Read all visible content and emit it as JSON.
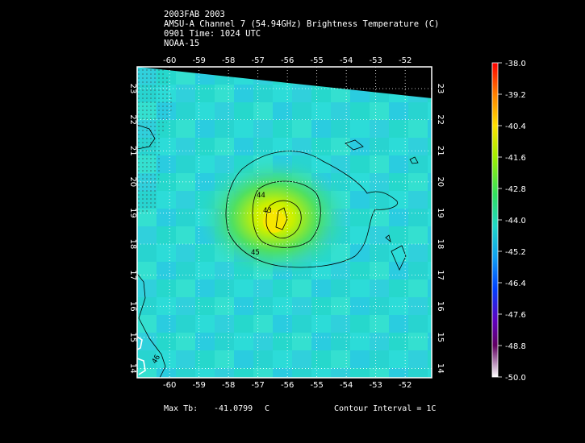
{
  "header": {
    "line1": "2003FAB 2003",
    "line2": "AMSU-A Channel 7 (54.94GHz) Brightness Temperature (C)",
    "line3": "0901 Time: 1024 UTC",
    "line4": "NOAA-15"
  },
  "map": {
    "lon_ticks": [
      "-60",
      "-59",
      "-58",
      "-57",
      "-56",
      "-55",
      "-54",
      "-53",
      "-52"
    ],
    "lat_ticks": [
      "14",
      "15",
      "16",
      "17",
      "18",
      "19",
      "20",
      "21",
      "22",
      "23"
    ],
    "lon_range": [
      -61.1,
      -51.1
    ],
    "lat_range": [
      13.7,
      23.7
    ],
    "contour_labels": [
      "44",
      "43",
      "45",
      "46"
    ],
    "colors": {
      "background": "#000000",
      "cold_field": "#2ad8d4",
      "warm_core": "#f5e800",
      "contour": "#000000",
      "coast": "#ffffff"
    }
  },
  "colorbar": {
    "labels": [
      "-38.0",
      "-39.2",
      "-40.4",
      "-41.6",
      "-42.8",
      "-44.0",
      "-45.2",
      "-46.4",
      "-47.6",
      "-48.8",
      "-50.0"
    ],
    "min": -50.0,
    "max": -38.0
  },
  "footer": {
    "max_tb_label": "Max Tb:",
    "max_tb_value": "-41.0799",
    "max_tb_unit": "C",
    "contour_interval": "Contour Interval = 1C"
  }
}
